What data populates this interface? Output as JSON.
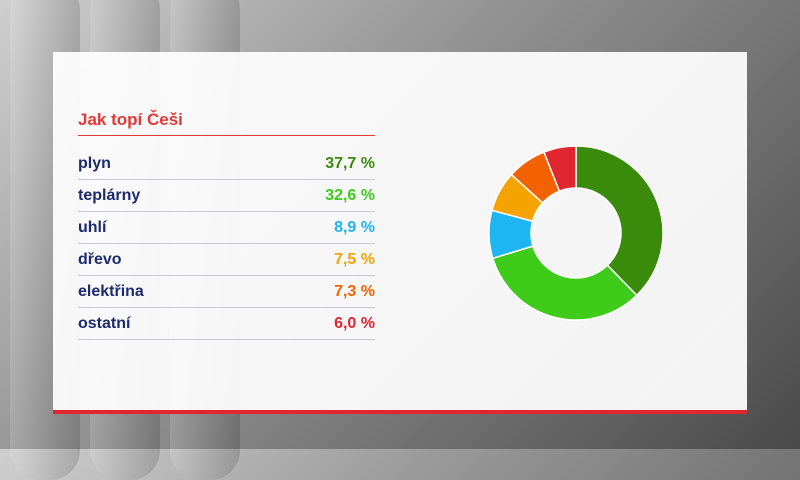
{
  "chart_data": {
    "type": "pie",
    "title": "Jak topí Češi",
    "categories": [
      "plyn",
      "teplárny",
      "uhlí",
      "dřevo",
      "elektřina",
      "ostatní"
    ],
    "values": [
      37.7,
      32.6,
      8.9,
      7.5,
      7.3,
      6.0
    ],
    "value_labels": [
      "37,7 %",
      "32,6 %",
      "8,9 %",
      "7,5 %",
      "7,3 %",
      "6,0 %"
    ],
    "colors": [
      "#3a8a0c",
      "#3ecb1a",
      "#1fb4f2",
      "#f5a300",
      "#f26200",
      "#e0262f"
    ],
    "legend": "left",
    "donut": true
  }
}
